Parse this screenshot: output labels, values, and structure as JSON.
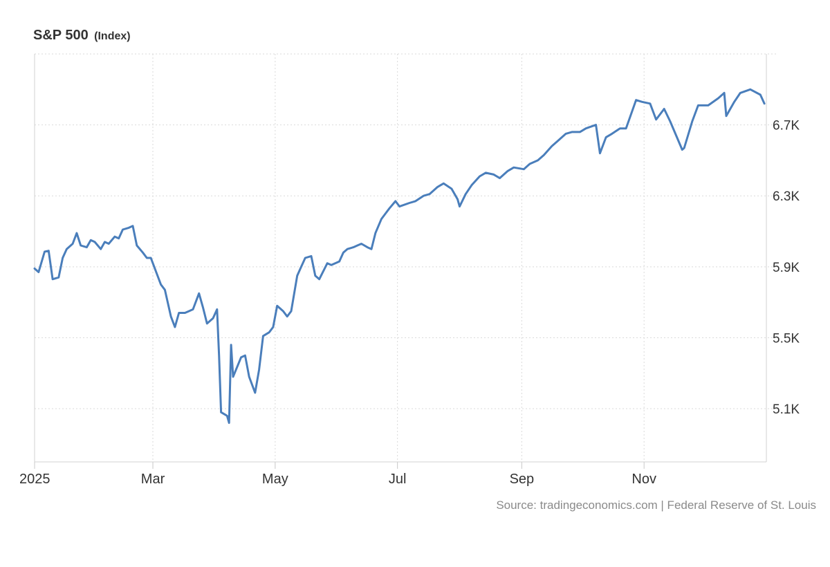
{
  "header": {
    "title": "S&P 500",
    "unit": "(Index)"
  },
  "source": "Source: tradingeconomics.com | Federal Reserve of St. Louis",
  "colors": {
    "line": "#4a7ebb",
    "grid": "#d9d9d9",
    "axis_text": "#333333",
    "source_text": "#8a8a8a"
  },
  "chart_data": {
    "type": "line",
    "title": "S&P 500",
    "unit": "(Index)",
    "xlabel": "",
    "ylabel": "",
    "x_tick_labels": [
      "2025",
      "Mar",
      "May",
      "Jul",
      "Sep",
      "Nov"
    ],
    "x_tick_dates": [
      "2025-01-01",
      "2025-03-01",
      "2025-05-01",
      "2025-07-01",
      "2025-09-01",
      "2025-11-01"
    ],
    "xlim": [
      "2025-01-01",
      "2025-12-31"
    ],
    "y_ticks": [
      5100,
      5500,
      5900,
      6300,
      6700
    ],
    "y_tick_labels": [
      "5.1K",
      "5.5K",
      "5.9K",
      "6.3K",
      "6.7K"
    ],
    "ylim": [
      4800,
      7100
    ],
    "y_axis_side": "right",
    "grid": true,
    "legend": "none",
    "series": [
      {
        "x": [
          "2025-01-01",
          "2025-01-03",
          "2025-01-06",
          "2025-01-08",
          "2025-01-10",
          "2025-01-13",
          "2025-01-15",
          "2025-01-17",
          "2025-01-20",
          "2025-01-22",
          "2025-01-24",
          "2025-01-27",
          "2025-01-29",
          "2025-01-31",
          "2025-02-03",
          "2025-02-05",
          "2025-02-07",
          "2025-02-10",
          "2025-02-12",
          "2025-02-14",
          "2025-02-17",
          "2025-02-19",
          "2025-02-21",
          "2025-02-24",
          "2025-02-26",
          "2025-02-28",
          "2025-03-03",
          "2025-03-05",
          "2025-03-07",
          "2025-03-10",
          "2025-03-12",
          "2025-03-14",
          "2025-03-17",
          "2025-03-19",
          "2025-03-21",
          "2025-03-24",
          "2025-03-26",
          "2025-03-28",
          "2025-03-31",
          "2025-04-02",
          "2025-04-03",
          "2025-04-04",
          "2025-04-07",
          "2025-04-08",
          "2025-04-09",
          "2025-04-10",
          "2025-04-14",
          "2025-04-16",
          "2025-04-18",
          "2025-04-21",
          "2025-04-23",
          "2025-04-25",
          "2025-04-28",
          "2025-04-30",
          "2025-05-02",
          "2025-05-05",
          "2025-05-07",
          "2025-05-09",
          "2025-05-12",
          "2025-05-14",
          "2025-05-16",
          "2025-05-19",
          "2025-05-21",
          "2025-05-23",
          "2025-05-27",
          "2025-05-29",
          "2025-06-02",
          "2025-06-04",
          "2025-06-06",
          "2025-06-09",
          "2025-06-11",
          "2025-06-13",
          "2025-06-16",
          "2025-06-18",
          "2025-06-20",
          "2025-06-23",
          "2025-06-25",
          "2025-06-27",
          "2025-06-30",
          "2025-07-02",
          "2025-07-07",
          "2025-07-10",
          "2025-07-14",
          "2025-07-17",
          "2025-07-21",
          "2025-07-24",
          "2025-07-28",
          "2025-07-31",
          "2025-08-01",
          "2025-08-04",
          "2025-08-07",
          "2025-08-11",
          "2025-08-14",
          "2025-08-18",
          "2025-08-21",
          "2025-08-25",
          "2025-08-28",
          "2025-09-02",
          "2025-09-05",
          "2025-09-09",
          "2025-09-12",
          "2025-09-16",
          "2025-09-19",
          "2025-09-23",
          "2025-09-26",
          "2025-09-30",
          "2025-10-03",
          "2025-10-08",
          "2025-10-10",
          "2025-10-13",
          "2025-10-16",
          "2025-10-20",
          "2025-10-23",
          "2025-10-28",
          "2025-10-31",
          "2025-11-04",
          "2025-11-07",
          "2025-11-11",
          "2025-11-14",
          "2025-11-17",
          "2025-11-20",
          "2025-11-21",
          "2025-11-25",
          "2025-11-28",
          "2025-12-03",
          "2025-12-08",
          "2025-12-11",
          "2025-12-12",
          "2025-12-16",
          "2025-12-19",
          "2025-12-24",
          "2025-12-29",
          "2025-12-31"
        ],
        "values": [
          5890,
          5870,
          5985,
          5990,
          5830,
          5840,
          5950,
          6000,
          6030,
          6090,
          6020,
          6010,
          6050,
          6040,
          6000,
          6040,
          6030,
          6070,
          6060,
          6110,
          6120,
          6130,
          6020,
          5980,
          5950,
          5950,
          5860,
          5800,
          5770,
          5620,
          5560,
          5640,
          5640,
          5650,
          5660,
          5750,
          5670,
          5580,
          5610,
          5660,
          5400,
          5080,
          5060,
          5020,
          5460,
          5280,
          5390,
          5400,
          5280,
          5190,
          5320,
          5510,
          5530,
          5560,
          5680,
          5650,
          5620,
          5650,
          5850,
          5900,
          5950,
          5960,
          5850,
          5830,
          5920,
          5910,
          5930,
          5980,
          6000,
          6010,
          6020,
          6030,
          6010,
          6000,
          6090,
          6170,
          6200,
          6230,
          6270,
          6240,
          6260,
          6270,
          6300,
          6310,
          6350,
          6370,
          6340,
          6280,
          6240,
          6310,
          6360,
          6410,
          6430,
          6420,
          6400,
          6440,
          6460,
          6450,
          6480,
          6500,
          6530,
          6580,
          6610,
          6650,
          6660,
          6660,
          6680,
          6700,
          6540,
          6630,
          6650,
          6680,
          6680,
          6840,
          6830,
          6820,
          6730,
          6790,
          6720,
          6640,
          6560,
          6570,
          6720,
          6810,
          6810,
          6850,
          6880,
          6750,
          6830,
          6880,
          6900,
          6870,
          6820
        ]
      }
    ]
  }
}
